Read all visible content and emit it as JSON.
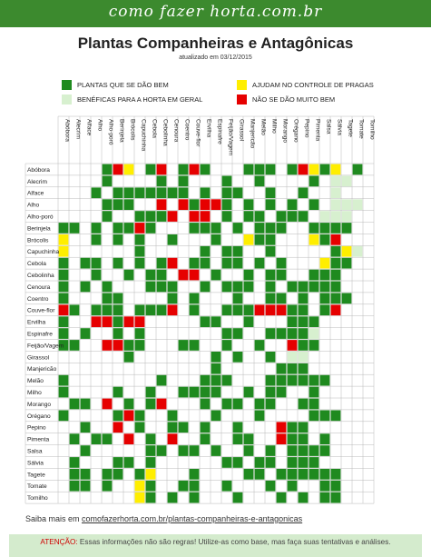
{
  "header": {
    "site": "como fazer horta.com.br"
  },
  "title": "Plantas Companheiras e Antagônicas",
  "updated": "atualizado em 03/12/2015",
  "colors": {
    "bem": "#1f8a1f",
    "beneficas": "#d7f0cf",
    "pragas": "#ffee00",
    "mal": "#e60000",
    "banner": "#3c8a2e"
  },
  "legend": {
    "bem": "PLANTAS QUE SE DÃO BEM",
    "beneficas": "BENÉFICAS PARA A HORTA EM GERAL",
    "pragas": "AJUDAM NO CONTROLE DE PRAGAS",
    "mal": "NÃO SE DÃO MUITO BEM"
  },
  "plants": [
    "Abóbora",
    "Alecrim",
    "Alface",
    "Alho",
    "Alho-poró",
    "Berinjela",
    "Brócolis",
    "Capuchinha",
    "Cebola",
    "Cebolinha",
    "Cenoura",
    "Coentro",
    "Couve-flor",
    "Ervilha",
    "Espinafre",
    "Feijão/Vagem",
    "Girassol",
    "Manjericão",
    "Melão",
    "Milho",
    "Morango",
    "Orégano",
    "Pepino",
    "Pimenta",
    "Salsa",
    "Sálvia",
    "Tagete",
    "Tomate",
    "Tomilho"
  ],
  "matrix_legend": "G = se dão bem, Y = controle de pragas, R = não se dão bem, L = benéficas para a horta, . = vazio",
  "matrix": [
    "....GRY.GR.GRG...GGG.GRYGY.G",
    "....G....G.G...G..G....G.LL",
    "...G.GGGGGGG.G.GG..G..G..L.",
    "....GGG..R.RGRRG.G.G.G.G.LLL",
    "....G..GGGR.RR.G.GG.GGG.LLL",
    "GG.G.GGRG...GGG.G.GGG..GGGG",
    "Y..G.G.G..G...G..YGG...YGR",
    "Y......G.....G.GG..G.....GYL",
    "G.GG.G.G.GR.GG.GG.G.G...YGG",
    "G..G..G.GG.RR.G..G.GG..GGG",
    "G.G.G...GGG..G.GGG.G.GGGGG",
    "G...GG....G.G...G..GG.G.GGG",
    "RG.GGG.GGGR.G..GGGRRRGG.GR",
    "G..RRGRR.....GG..G...GGG",
    "G.G..G.G.......GG..GGGGL",
    "GG..RRGG...GG..G..G..RGG",
    "......G.......G.G..G.LL.",
    "..............G.....GGG.",
    "G........G...GGG...GGGGGG",
    "G....G..G..GGGG..G.GG..G",
    ".GG.R.G.GR...G.GG.GG..GG.",
    "G....GRG..G...G...G....GGG",
    "..G..R.G..GG.G..G...RGG",
    ".G.GG.R.G.R..G..GG..RGG.G",
    "..G.....GG.GG.G..G.G.GGGG",
    ".G...GG.G......GG.GG.GGG.",
    ".GG.GG.GY...G....GG.GGGGGG",
    ".GG.G..YG..GG..G...G.G..GG",
    ".......YG.G.G...G...G.G.GG"
  ],
  "footer": {
    "prefix": "Saiba mais em ",
    "link": "comofazerhorta.com.br/plantas-companheiras-e-antagonicas",
    "warning_label": "ATENÇÃO:",
    "warning_text": " Essas informações não são regras! Utilize-as como base, mas faça suas tentativas e análises."
  }
}
